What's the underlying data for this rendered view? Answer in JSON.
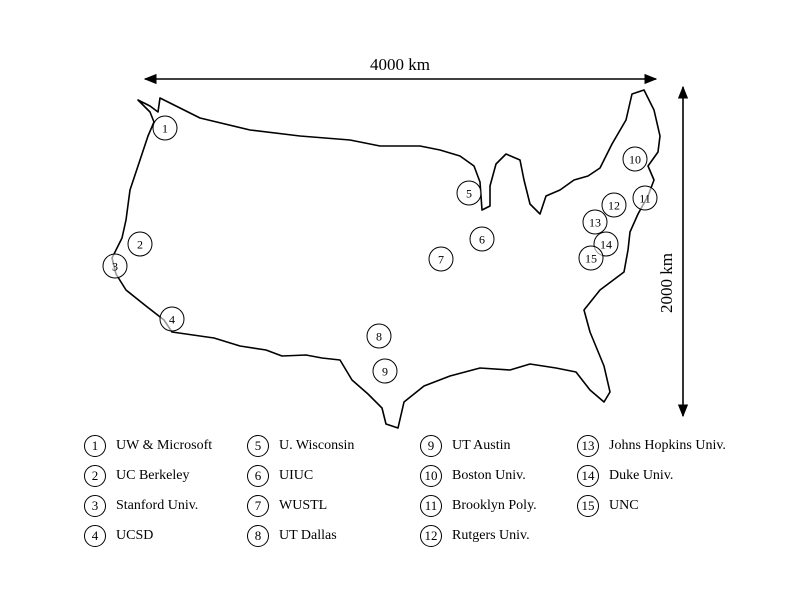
{
  "scale": {
    "horizontal_label": "4000 km",
    "vertical_label": "2000 km"
  },
  "colors": {
    "line": "#000000",
    "background": "#ffffff"
  },
  "sites": [
    {
      "num": "1",
      "name": "UW & Microsoft"
    },
    {
      "num": "2",
      "name": "UC Berkeley"
    },
    {
      "num": "3",
      "name": "Stanford Univ."
    },
    {
      "num": "4",
      "name": "UCSD"
    },
    {
      "num": "5",
      "name": "U. Wisconsin"
    },
    {
      "num": "6",
      "name": "UIUC"
    },
    {
      "num": "7",
      "name": "WUSTL"
    },
    {
      "num": "8",
      "name": "UT Dallas"
    },
    {
      "num": "9",
      "name": "UT Austin"
    },
    {
      "num": "10",
      "name": "Boston Univ."
    },
    {
      "num": "11",
      "name": "Brooklyn Poly."
    },
    {
      "num": "12",
      "name": "Rutgers Univ."
    },
    {
      "num": "13",
      "name": "Johns Hopkins Univ."
    },
    {
      "num": "14",
      "name": "Duke Univ."
    },
    {
      "num": "15",
      "name": "UNC"
    }
  ]
}
